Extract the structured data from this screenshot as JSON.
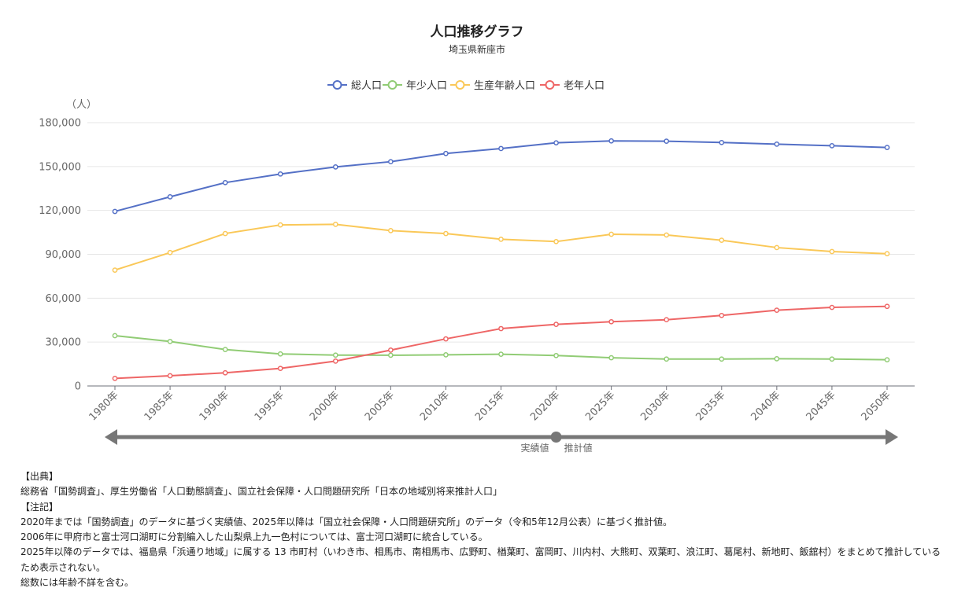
{
  "chart_data": {
    "type": "line",
    "title": "人口推移グラフ",
    "subtitle": "埼玉県新座市",
    "ylabel": "（人）",
    "ylim": [
      0,
      180000
    ],
    "yticks": [
      0,
      30000,
      60000,
      90000,
      120000,
      150000,
      180000
    ],
    "ytick_labels": [
      "0",
      "30,000",
      "60,000",
      "90,000",
      "120,000",
      "150,000",
      "180,000"
    ],
    "grid": true,
    "legend_position": "top-center",
    "categories": [
      "1980年",
      "1985年",
      "1990年",
      "1995年",
      "2000年",
      "2005年",
      "2010年",
      "2015年",
      "2020年",
      "2025年",
      "2030年",
      "2035年",
      "2040年",
      "2045年",
      "2050年"
    ],
    "series": [
      {
        "name": "総人口",
        "color": "#5470c6",
        "values": [
          119300,
          129300,
          139000,
          144900,
          149700,
          153300,
          158900,
          162300,
          166200,
          167500,
          167300,
          166400,
          165300,
          164200,
          163000
        ]
      },
      {
        "name": "年少人口",
        "color": "#91cc75",
        "values": [
          34400,
          30400,
          24900,
          21900,
          21100,
          21000,
          21300,
          21700,
          20800,
          19300,
          18400,
          18400,
          18600,
          18400,
          17900
        ]
      },
      {
        "name": "生産年齢人口",
        "color": "#fac858",
        "values": [
          79200,
          91200,
          104200,
          110100,
          110500,
          106200,
          104200,
          100300,
          98700,
          103700,
          103200,
          99600,
          94600,
          91900,
          90400
        ]
      },
      {
        "name": "老年人口",
        "color": "#ee6666",
        "values": [
          5200,
          7000,
          9000,
          12000,
          17000,
          24500,
          32200,
          39200,
          42100,
          43900,
          45300,
          48200,
          51800,
          53700,
          54400
        ]
      }
    ],
    "period_bar": {
      "actual_label": "実績値",
      "projection_label": "推計値",
      "split_at": "2020年",
      "color": "#777777"
    }
  },
  "notes": {
    "source_heading": "【出典】",
    "source_text": "総務省「国勢調査」、厚生労働省「人口動態調査」、国立社会保障・人口問題研究所「日本の地域別将来推計人口」",
    "notes_heading": "【注記】",
    "lines": [
      "2020年までは「国勢調査」のデータに基づく実績値、2025年以降は「国立社会保障・人口問題研究所」のデータ（令和5年12月公表）に基づく推計値。",
      "2006年に甲府市と富士河口湖町に分割編入した山梨県上九一色村については、富士河口湖町に統合している。",
      "2025年以降のデータでは、福島県「浜通り地域」に属する 13 市町村（いわき市、相馬市、南相馬市、広野町、楢葉町、富岡町、川内村、大熊町、双葉町、浪江町、葛尾村、新地町、飯舘村）をまとめて推計しているため表示されない。",
      "総数には年齢不詳を含む。"
    ]
  }
}
